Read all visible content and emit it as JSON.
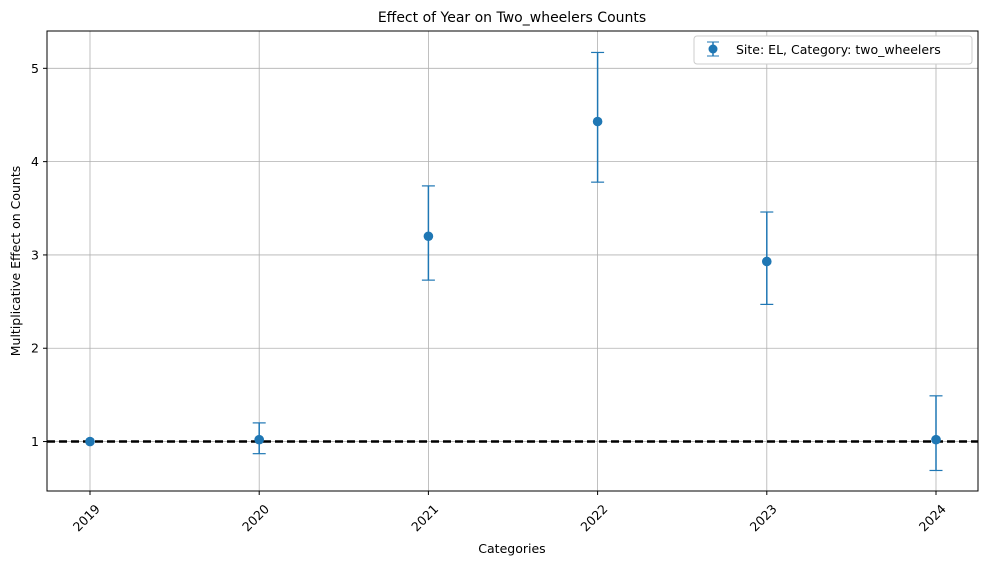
{
  "chart_data": {
    "type": "scatter",
    "title": "Effect of Year on Two_wheelers Counts",
    "xlabel": "Categories",
    "ylabel": "Multiplicative Effect on Counts",
    "categories": [
      "2019",
      "2020",
      "2021",
      "2022",
      "2023",
      "2024"
    ],
    "series": [
      {
        "name": "Site: EL, Category: two_wheelers",
        "values": [
          1.0,
          1.02,
          3.2,
          4.43,
          2.93,
          1.02
        ],
        "lower": [
          1.0,
          0.87,
          2.73,
          3.78,
          2.47,
          0.69
        ],
        "upper": [
          1.0,
          1.2,
          3.74,
          5.17,
          3.46,
          1.49
        ],
        "color": "#1f77b4"
      }
    ],
    "reference_line": {
      "y": 1,
      "color": "#000000",
      "style": "dashed"
    },
    "ylim": [
      0.47,
      5.4
    ],
    "yticks": [
      1,
      2,
      3,
      4,
      5
    ],
    "grid": true,
    "legend_position": "top-right"
  }
}
